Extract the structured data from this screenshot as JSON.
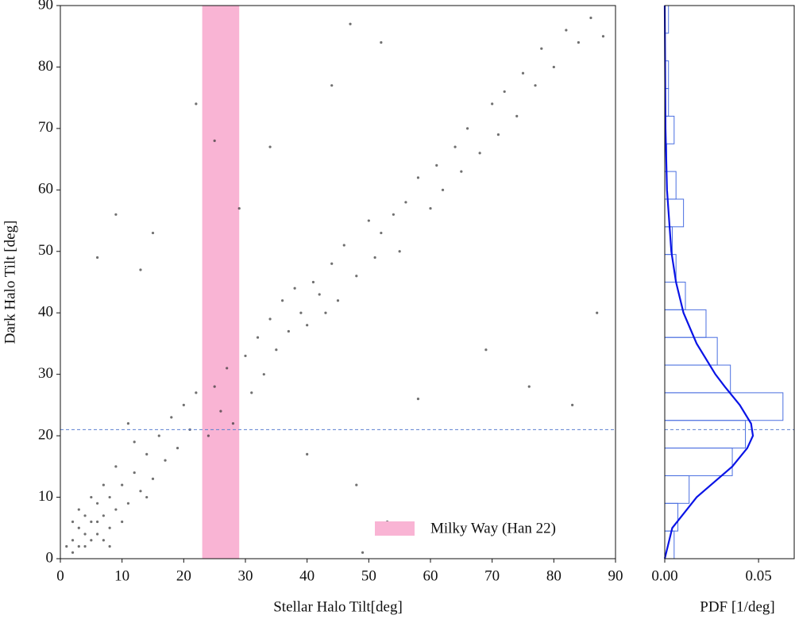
{
  "chart_data": [
    {
      "type": "scatter",
      "xlabel": "Stellar Halo Tilt[deg]",
      "ylabel": "Dark Halo Tilt [deg]",
      "x": [
        2,
        3,
        4,
        5,
        3,
        6,
        4,
        2,
        7,
        5,
        8,
        3,
        6,
        4,
        1,
        9,
        5,
        7,
        2,
        6,
        10,
        8,
        11,
        12,
        9,
        13,
        7,
        14,
        10,
        15,
        12,
        16,
        11,
        17,
        18,
        19,
        20,
        14,
        21,
        8,
        22,
        24,
        25,
        26,
        27,
        28,
        30,
        31,
        32,
        33,
        34,
        35,
        36,
        37,
        38,
        39,
        40,
        41,
        42,
        43,
        44,
        45,
        46,
        48,
        50,
        51,
        52,
        54,
        55,
        56,
        58,
        60,
        61,
        62,
        64,
        65,
        66,
        68,
        70,
        71,
        72,
        74,
        75,
        77,
        78,
        80,
        82,
        84,
        86,
        88,
        9,
        6,
        15,
        13,
        22,
        25,
        29,
        44,
        47,
        34,
        52,
        40,
        48,
        53,
        58,
        69,
        76,
        83,
        87,
        49
      ],
      "y": [
        3,
        5,
        2,
        6,
        8,
        4,
        4,
        1,
        7,
        3,
        5,
        2,
        9,
        7,
        2,
        8,
        10,
        3,
        6,
        6,
        12,
        10,
        9,
        14,
        15,
        11,
        12,
        17,
        6,
        13,
        19,
        20,
        22,
        16,
        23,
        18,
        25,
        10,
        21,
        2,
        27,
        20,
        28,
        24,
        31,
        22,
        33,
        27,
        36,
        30,
        39,
        34,
        42,
        37,
        44,
        40,
        38,
        45,
        43,
        40,
        48,
        42,
        51,
        46,
        55,
        49,
        53,
        56,
        50,
        58,
        62,
        57,
        64,
        60,
        67,
        63,
        70,
        66,
        74,
        69,
        76,
        72,
        79,
        77,
        83,
        80,
        86,
        84,
        88,
        85,
        56,
        49,
        53,
        47,
        74,
        68,
        57,
        77,
        87,
        67,
        84,
        17,
        12,
        6,
        26,
        34,
        28,
        25,
        40,
        1
      ],
      "color": "#333333",
      "xlim": [
        0,
        90
      ],
      "ylim": [
        0,
        90
      ],
      "xticks": [
        0,
        10,
        20,
        30,
        40,
        50,
        60,
        70,
        80,
        90
      ],
      "yticks": [
        0,
        10,
        20,
        30,
        40,
        50,
        60,
        70,
        80,
        90
      ],
      "band": {
        "label": "Milky Way (Han 22)",
        "xrange": [
          23,
          29
        ],
        "color": "#f9b4d4"
      },
      "hline": 21,
      "hline_color": "#5b7fd0",
      "legend": "lower right"
    },
    {
      "type": "histogram",
      "orientation": "horizontal",
      "xlabel": "PDF [1/deg]",
      "bins": [
        0,
        4.5,
        9,
        13.5,
        18,
        22.5,
        27,
        31.5,
        36,
        40.5,
        45,
        49.5,
        54,
        58.5,
        63,
        67.5,
        72,
        76.5,
        81,
        85.5,
        90
      ],
      "values": [
        0.005,
        0.007,
        0.013,
        0.036,
        0.043,
        0.063,
        0.035,
        0.028,
        0.022,
        0.011,
        0.006,
        0.004,
        0.01,
        0.006,
        0.001,
        0.005,
        0.002,
        0.002,
        0.0,
        0.002
      ],
      "color": "#4a6fe0",
      "curve": {
        "x": [
          0,
          5,
          10,
          15,
          18,
          20,
          22,
          25,
          28,
          30,
          35,
          40,
          45,
          50,
          60,
          70,
          90
        ],
        "values": [
          0.0,
          0.004,
          0.017,
          0.036,
          0.044,
          0.047,
          0.046,
          0.04,
          0.032,
          0.027,
          0.017,
          0.01,
          0.006,
          0.0035,
          0.0012,
          0.0004,
          0.0
        ],
        "color": "#0a14e6"
      },
      "xlim": [
        0,
        0.069
      ],
      "ylim": [
        0,
        90
      ],
      "xticks": [
        {
          "value": 0,
          "label": "0.00"
        },
        {
          "value": 0.05,
          "label": "0.05"
        }
      ],
      "hline": 21,
      "hline_color": "#5b7fd0"
    }
  ]
}
